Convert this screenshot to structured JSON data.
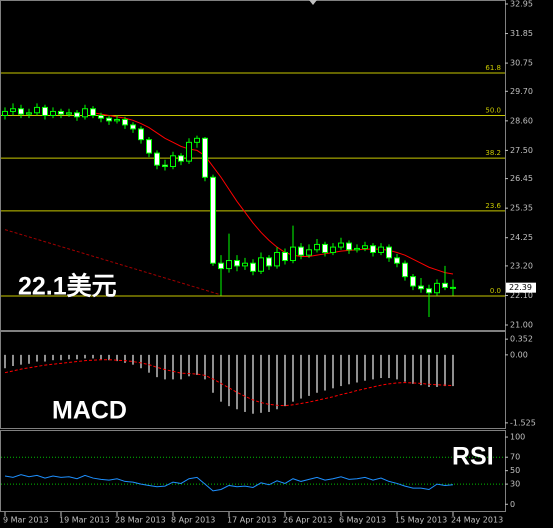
{
  "chart_data": [
    {
      "type": "candlestick",
      "categories": [
        "9 Mar 2013",
        null,
        null,
        null,
        null,
        null,
        null,
        "19 Mar 2013",
        null,
        null,
        null,
        null,
        null,
        null,
        "28 Mar 2013",
        null,
        null,
        null,
        null,
        null,
        null,
        "8 Apr 2013",
        null,
        null,
        null,
        null,
        null,
        null,
        "17 Apr 2013",
        null,
        null,
        null,
        null,
        null,
        null,
        "26 Apr 2013",
        null,
        null,
        null,
        null,
        null,
        null,
        "6 May 2013",
        null,
        null,
        null,
        null,
        null,
        null,
        "15 May 2013",
        null,
        null,
        null,
        null,
        null,
        null,
        "24 May 2013"
      ],
      "candles": [
        [
          28.8,
          29.1,
          28.65,
          28.95
        ],
        [
          28.95,
          29.25,
          28.8,
          29.05
        ],
        [
          29.05,
          29.2,
          28.7,
          28.85
        ],
        [
          28.85,
          29.05,
          28.7,
          28.9
        ],
        [
          28.9,
          29.25,
          28.8,
          29.1
        ],
        [
          29.1,
          29.2,
          28.65,
          28.8
        ],
        [
          28.8,
          29.1,
          28.7,
          28.95
        ],
        [
          28.95,
          29.05,
          28.7,
          28.85
        ],
        [
          28.85,
          29.05,
          28.75,
          28.9
        ],
        [
          28.9,
          29.0,
          28.6,
          28.75
        ],
        [
          28.75,
          29.2,
          28.65,
          29.05
        ],
        [
          29.05,
          29.15,
          28.7,
          28.8
        ],
        [
          28.8,
          28.9,
          28.55,
          28.7
        ],
        [
          28.7,
          28.8,
          28.45,
          28.6
        ],
        [
          28.6,
          28.8,
          28.5,
          28.65
        ],
        [
          28.65,
          28.75,
          28.3,
          28.45
        ],
        [
          28.45,
          28.55,
          28.15,
          28.3
        ],
        [
          28.3,
          28.4,
          27.75,
          27.9
        ],
        [
          27.9,
          28.0,
          27.25,
          27.4
        ],
        [
          27.4,
          27.5,
          26.8,
          26.95
        ],
        [
          26.95,
          27.15,
          26.75,
          26.9
        ],
        [
          26.9,
          27.45,
          26.8,
          27.3
        ],
        [
          27.3,
          27.4,
          26.95,
          27.1
        ],
        [
          27.1,
          27.95,
          27.0,
          27.8
        ],
        [
          27.8,
          28.05,
          27.6,
          27.95
        ],
        [
          27.95,
          28.0,
          26.35,
          26.5
        ],
        [
          26.5,
          26.6,
          23.2,
          23.3
        ],
        [
          23.3,
          23.6,
          22.1,
          23.1
        ],
        [
          23.1,
          24.4,
          22.95,
          23.4
        ],
        [
          23.4,
          23.6,
          23.0,
          23.2
        ],
        [
          23.2,
          23.5,
          23.05,
          23.3
        ],
        [
          23.3,
          23.45,
          22.85,
          23.0
        ],
        [
          23.0,
          23.7,
          22.9,
          23.5
        ],
        [
          23.5,
          23.6,
          23.05,
          23.2
        ],
        [
          23.2,
          23.9,
          23.1,
          23.7
        ],
        [
          23.7,
          23.85,
          23.25,
          23.4
        ],
        [
          23.4,
          24.7,
          23.3,
          23.9
        ],
        [
          23.9,
          24.05,
          23.45,
          23.6
        ],
        [
          23.6,
          24.0,
          23.5,
          23.8
        ],
        [
          23.8,
          24.2,
          23.7,
          24.0
        ],
        [
          24.0,
          24.1,
          23.55,
          23.7
        ],
        [
          23.7,
          24.05,
          23.6,
          23.9
        ],
        [
          23.9,
          24.25,
          23.8,
          24.05
        ],
        [
          24.05,
          24.15,
          23.65,
          23.8
        ],
        [
          23.8,
          24.0,
          23.7,
          23.85
        ],
        [
          23.85,
          24.1,
          23.75,
          23.95
        ],
        [
          23.95,
          24.05,
          23.55,
          23.7
        ],
        [
          23.7,
          24.05,
          23.6,
          23.9
        ],
        [
          23.9,
          24.0,
          23.35,
          23.5
        ],
        [
          23.5,
          23.65,
          23.15,
          23.3
        ],
        [
          23.3,
          23.4,
          22.65,
          22.8
        ],
        [
          22.8,
          22.9,
          22.3,
          22.45
        ],
        [
          22.45,
          22.75,
          22.2,
          22.35
        ],
        [
          22.35,
          22.5,
          21.3,
          22.2
        ],
        [
          22.2,
          22.7,
          22.1,
          22.55
        ],
        [
          22.55,
          23.2,
          22.3,
          22.4
        ],
        [
          22.4,
          22.7,
          22.1,
          22.39
        ]
      ],
      "up_color": "#000000",
      "down_color": "#ffffff",
      "wick_color": "#00ff00",
      "ylim": [
        21.0,
        32.95
      ],
      "yticks": [
        32.95,
        31.85,
        30.75,
        {
          "value": 29.7,
          "label": "29.70"
        },
        {
          "value": 28.6,
          "label": "28.60"
        },
        {
          "value": 27.5,
          "label": "27.50"
        },
        26.45,
        25.35,
        24.25,
        {
          "value": 23.2,
          "label": "23.20"
        },
        {
          "value": 22.1,
          "label": "22.10"
        },
        {
          "value": 21.0,
          "label": "21.00"
        }
      ],
      "moving_averages": [
        {
          "color": "#ff0000",
          "values": [
            null,
            null,
            null,
            null,
            null,
            null,
            null,
            null,
            null,
            null,
            null,
            28.9,
            28.85,
            28.8,
            28.75,
            28.7,
            28.62,
            28.5,
            28.35,
            28.15,
            27.95,
            27.8,
            27.65,
            27.55,
            27.5,
            27.3,
            26.9,
            26.5,
            26.05,
            25.6,
            25.2,
            24.8,
            24.45,
            24.15,
            23.9,
            23.7,
            23.6,
            23.55,
            23.55,
            23.6,
            23.65,
            23.7,
            23.75,
            23.78,
            23.8,
            23.82,
            23.83,
            23.82,
            23.78,
            23.7,
            23.6,
            23.45,
            23.3,
            23.15,
            23.05,
            22.95,
            22.9
          ]
        },
        {
          "color": "#a00000",
          "values": [
            24.55,
            24.46,
            24.37,
            24.28,
            24.19,
            24.1,
            24.01,
            23.92,
            23.83,
            23.74,
            23.65,
            23.56,
            23.47,
            23.38,
            23.29,
            23.2,
            23.11,
            23.02,
            22.93,
            22.84,
            22.75,
            22.66,
            22.57,
            22.48,
            22.39,
            22.3,
            22.21,
            22.12,
            null,
            null,
            null,
            null,
            null,
            null,
            null,
            null,
            null,
            null,
            null,
            null,
            null,
            null,
            null,
            null,
            null,
            null,
            null,
            null,
            null,
            null,
            null,
            null,
            null,
            null,
            null,
            null,
            null
          ]
        }
      ],
      "fibonacci": [
        {
          "label": "61.8",
          "value": 30.38
        },
        {
          "label": "50.0",
          "value": 28.8
        },
        {
          "label": "38.2",
          "value": 27.21
        },
        {
          "label": "23.6",
          "value": 25.25
        },
        {
          "label": "0.0",
          "value": 22.08
        }
      ],
      "fib_color": "#c8c800",
      "annotation": "22.1美元"
    },
    {
      "type": "macd",
      "annotation": "MACD",
      "color": "#c0c0c0",
      "values": [
        -0.3,
        -0.25,
        -0.22,
        -0.2,
        -0.15,
        -0.15,
        -0.12,
        -0.12,
        -0.1,
        -0.1,
        -0.08,
        -0.08,
        -0.1,
        -0.12,
        -0.14,
        -0.18,
        -0.22,
        -0.3,
        -0.4,
        -0.5,
        -0.55,
        -0.55,
        -0.55,
        -0.48,
        -0.45,
        -0.55,
        -0.85,
        -1.05,
        -1.15,
        -1.22,
        -1.28,
        -1.32,
        -1.3,
        -1.28,
        -1.22,
        -1.15,
        -1.05,
        -0.98,
        -0.92,
        -0.85,
        -0.8,
        -0.75,
        -0.7,
        -0.66,
        -0.62,
        -0.58,
        -0.55,
        -0.52,
        -0.52,
        -0.55,
        -0.6,
        -0.65,
        -0.68,
        -0.72,
        -0.72,
        -0.7,
        -0.7
      ],
      "signal": {
        "color": "#ff0000",
        "values": [
          -0.4,
          -0.36,
          -0.32,
          -0.29,
          -0.26,
          -0.23,
          -0.21,
          -0.19,
          -0.17,
          -0.15,
          -0.13,
          -0.12,
          -0.11,
          -0.11,
          -0.12,
          -0.13,
          -0.15,
          -0.18,
          -0.22,
          -0.28,
          -0.33,
          -0.37,
          -0.41,
          -0.42,
          -0.43,
          -0.46,
          -0.54,
          -0.64,
          -0.74,
          -0.84,
          -0.93,
          -1.01,
          -1.07,
          -1.11,
          -1.13,
          -1.14,
          -1.12,
          -1.09,
          -1.06,
          -1.02,
          -0.98,
          -0.94,
          -0.89,
          -0.85,
          -0.8,
          -0.76,
          -0.72,
          -0.68,
          -0.65,
          -0.63,
          -0.62,
          -0.63,
          -0.64,
          -0.66,
          -0.67,
          -0.68,
          -0.69
        ]
      },
      "ylim": [
        -1.64,
        0.49
      ],
      "yticks": [
        0.352,
        {
          "value": 0,
          "label": "0.00"
        },
        -1.525
      ]
    },
    {
      "type": "line",
      "annotation": "RSI",
      "series": [
        {
          "color": "#1e90ff",
          "values": [
            42,
            40,
            44,
            41,
            43,
            39,
            42,
            40,
            41,
            38,
            43,
            39,
            37,
            36,
            38,
            34,
            33,
            30,
            28,
            26,
            27,
            33,
            31,
            38,
            40,
            30,
            20,
            22,
            28,
            26,
            27,
            25,
            32,
            29,
            35,
            31,
            38,
            34,
            37,
            40,
            36,
            38,
            41,
            37,
            38,
            40,
            36,
            39,
            34,
            31,
            27,
            24,
            24,
            22,
            30,
            28,
            29
          ]
        }
      ],
      "levels": [
        70,
        30
      ],
      "level_color": "#00c000",
      "ylim": [
        -10,
        109
      ],
      "yticks": [
        100,
        70,
        50,
        30,
        0
      ]
    }
  ]
}
